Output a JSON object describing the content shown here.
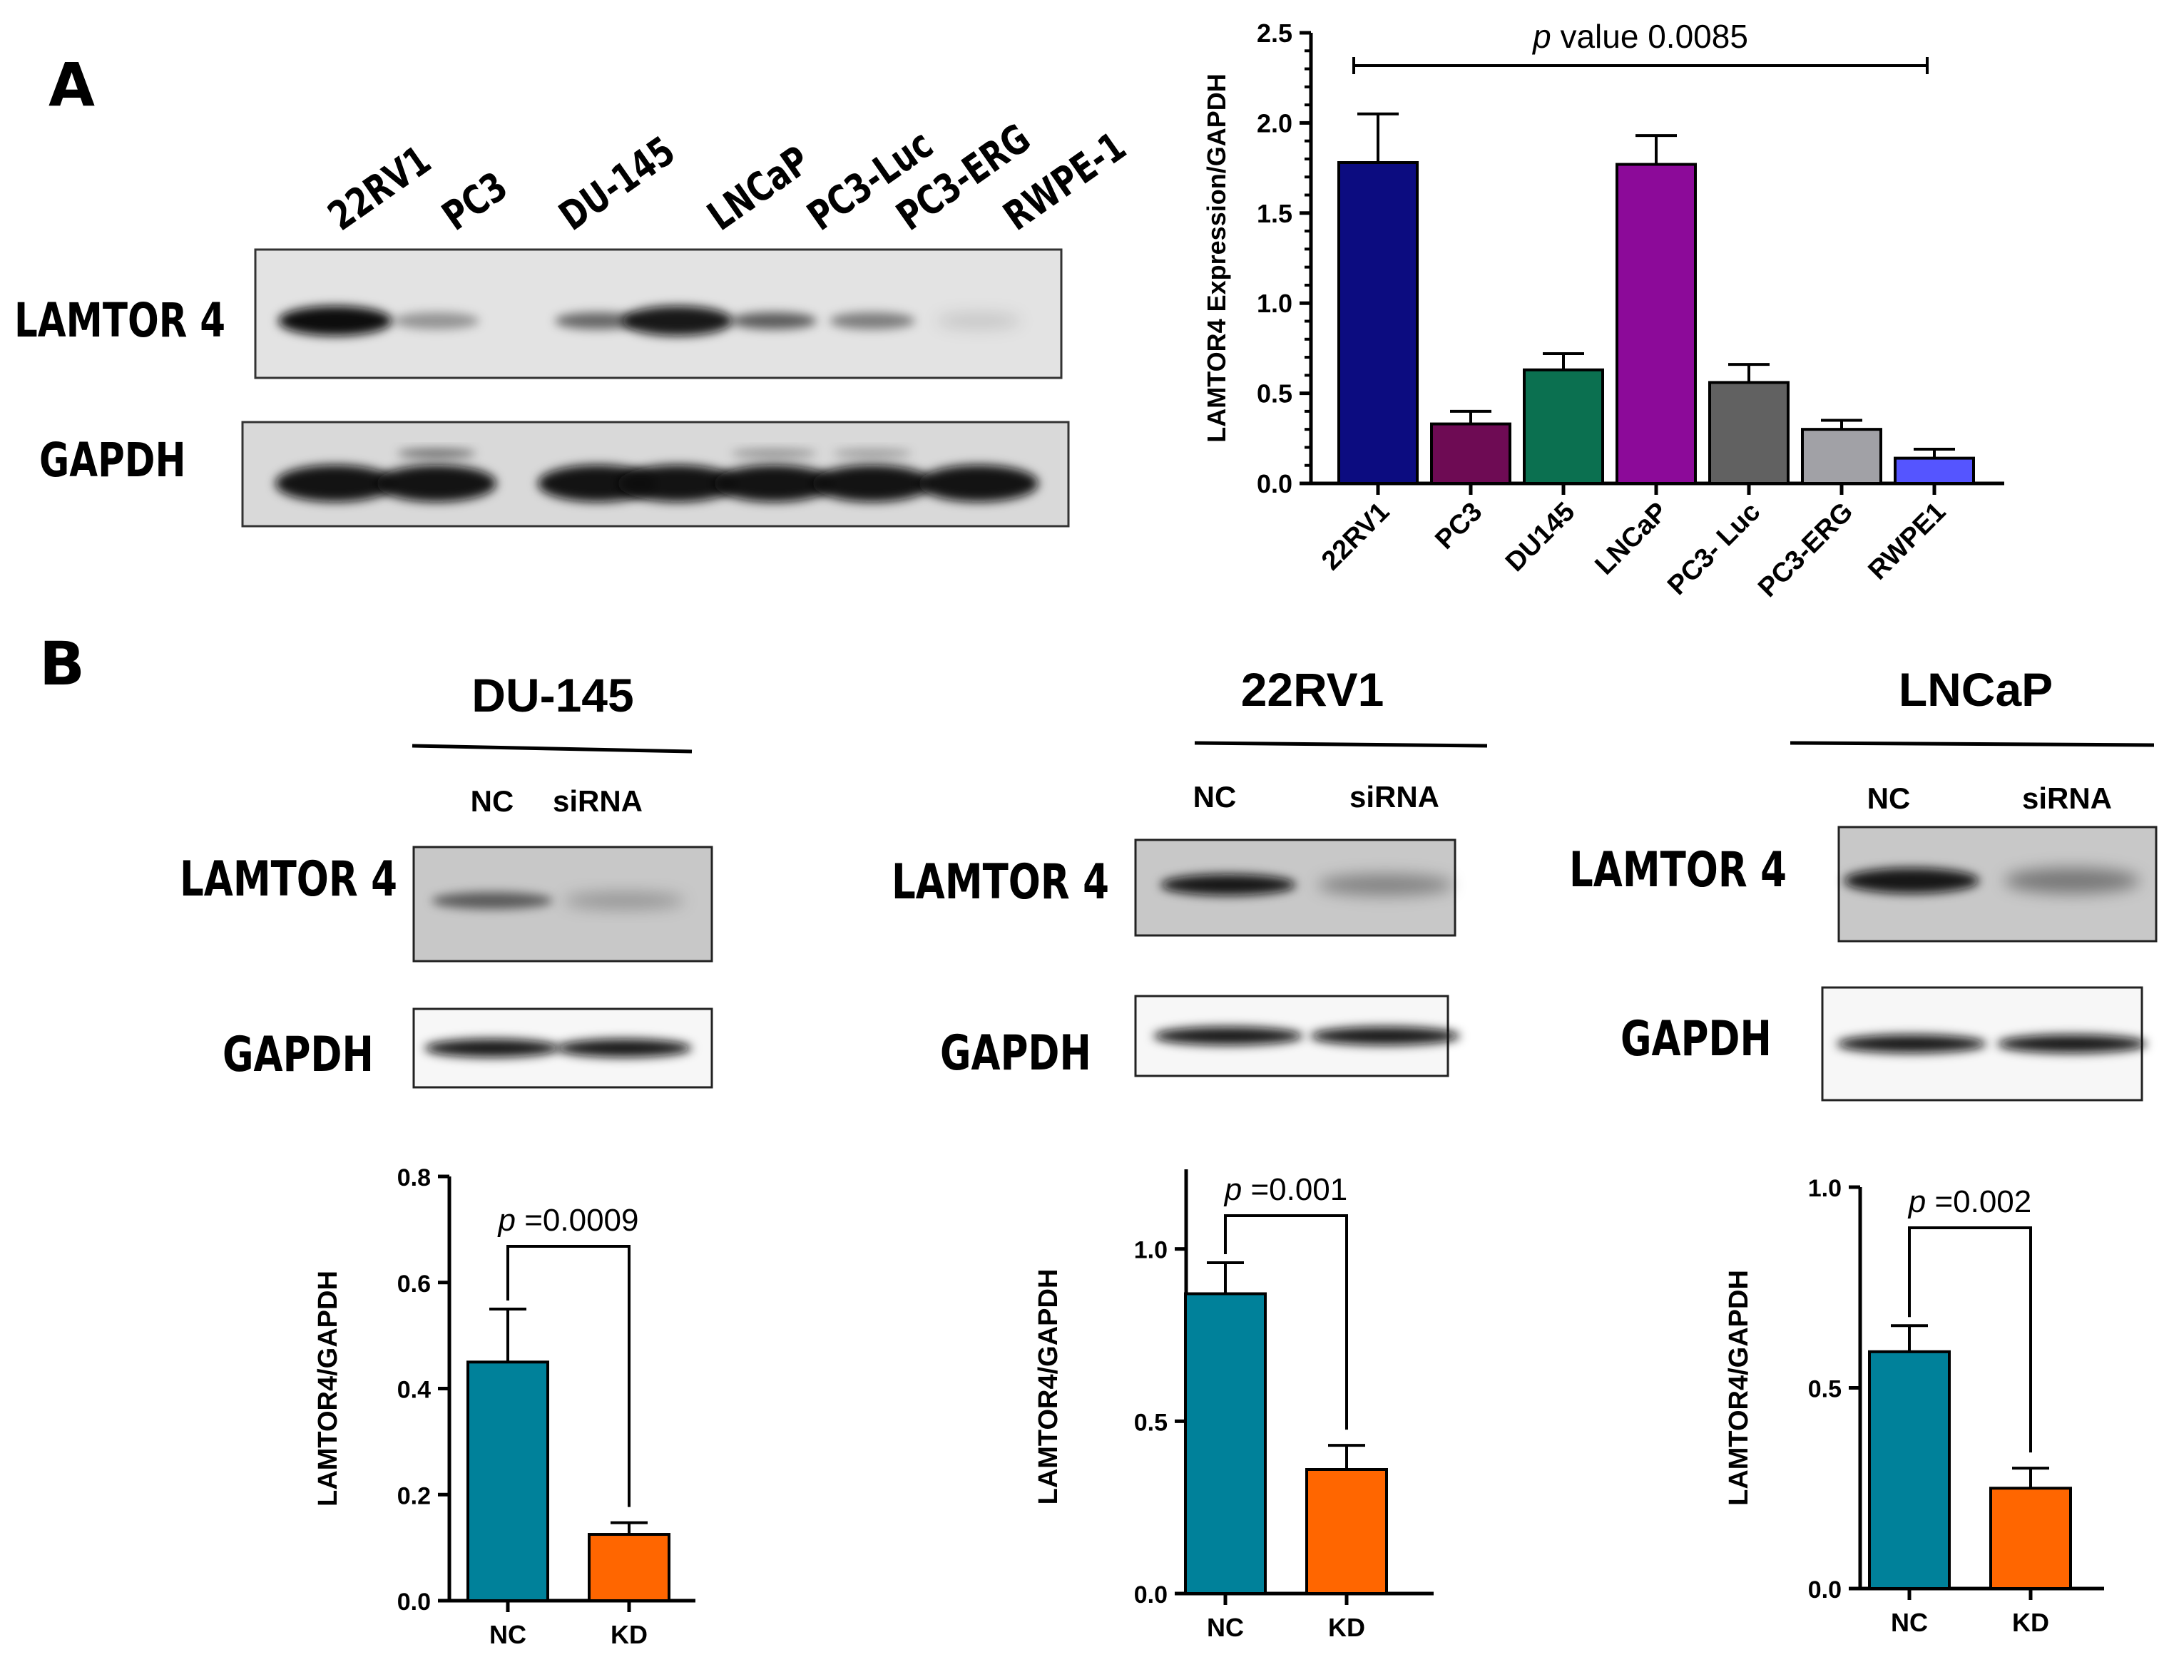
{
  "panel_a": {
    "letter": "A",
    "blot": {
      "lanes": [
        "22RV1",
        "PC3",
        "DU-145",
        "LNCaP",
        "PC3-Luc",
        "PC3-ERG",
        "RWPE-1"
      ],
      "rows": [
        "LAMTOR 4",
        "GAPDH"
      ],
      "lamtor_intensity": [
        1.0,
        0.35,
        0.55,
        0.95,
        0.6,
        0.45,
        0.12
      ],
      "gapdh_intensity": [
        1.0,
        1.0,
        1.0,
        1.0,
        1.0,
        1.0,
        1.0
      ]
    }
  },
  "panel_b": {
    "letter": "B",
    "blots": [
      {
        "title": "DU-145",
        "lanes": [
          "NC",
          "siRNA"
        ],
        "rows": [
          "LAMTOR 4",
          "GAPDH"
        ],
        "lamtor_intensity": [
          0.55,
          0.25
        ]
      },
      {
        "title": "22RV1",
        "lanes": [
          "NC",
          "siRNA"
        ],
        "rows": [
          "LAMTOR 4",
          "GAPDH"
        ],
        "lamtor_intensity": [
          0.95,
          0.35
        ]
      },
      {
        "title": "LNCaP",
        "lanes": [
          "NC",
          "siRNA"
        ],
        "rows": [
          "LAMTOR 4",
          "GAPDH"
        ],
        "lamtor_intensity": [
          0.95,
          0.4
        ]
      }
    ]
  },
  "colors": {
    "bar_a": [
      "#0c0c80",
      "#6e0b54",
      "#0b7050",
      "#8c0a99",
      "#616161",
      "#a1a1a6",
      "#5555ff"
    ],
    "nc": "#00819a",
    "kd": "#ff6600"
  },
  "chart_data": [
    {
      "type": "bar",
      "categories": [
        "22RV1",
        "PC3",
        "DU145",
        "LNCaP",
        "PC3- Luc",
        "PC3-ERG",
        "RWPE1"
      ],
      "values": [
        1.78,
        0.33,
        0.63,
        1.77,
        0.56,
        0.3,
        0.14
      ],
      "errors": [
        0.27,
        0.07,
        0.09,
        0.16,
        0.1,
        0.05,
        0.05
      ],
      "ylabel": "LAMTOR4 Expression/GAPDH",
      "ylim": [
        0,
        2.5
      ],
      "yticks": [
        0.0,
        0.5,
        1.0,
        1.5,
        2.0,
        2.5
      ],
      "ytick_labels": [
        "0.0",
        "0.5",
        "1.0",
        "1.5",
        "2.0",
        "2.5"
      ],
      "annotation": {
        "italic": "p",
        "text": " value 0.0085"
      }
    },
    {
      "type": "bar",
      "categories": [
        "NC",
        "KD"
      ],
      "values": [
        0.45,
        0.125
      ],
      "errors": [
        0.1,
        0.022
      ],
      "ylabel": "LAMTOR4/GAPDH",
      "ylim": [
        0,
        0.8
      ],
      "yticks": [
        0.0,
        0.2,
        0.4,
        0.6,
        0.8
      ],
      "ytick_labels": [
        "0.0",
        "0.2",
        "0.4",
        "0.6",
        "0.8"
      ],
      "annotation": {
        "italic": "p",
        "text": " =0.0009"
      }
    },
    {
      "type": "bar",
      "categories": [
        "NC",
        "KD"
      ],
      "values": [
        0.87,
        0.36
      ],
      "errors": [
        0.09,
        0.07
      ],
      "ylabel": "LAMTOR4/GAPDH",
      "ylim": [
        0,
        1.2
      ],
      "yticks": [
        0.0,
        0.5,
        1.0
      ],
      "ytick_labels": [
        "0.0",
        "0.5",
        "1.0"
      ],
      "annotation": {
        "italic": "p",
        "text": " =0.001"
      }
    },
    {
      "type": "bar",
      "categories": [
        "NC",
        "KD"
      ],
      "values": [
        0.59,
        0.25
      ],
      "errors": [
        0.065,
        0.05
      ],
      "ylabel": "LAMTOR4/GAPDH",
      "ylim": [
        0,
        1.0
      ],
      "yticks": [
        0.0,
        0.5,
        1.0
      ],
      "ytick_labels": [
        "0.0",
        "0.5",
        "1.0"
      ],
      "annotation": {
        "italic": "p",
        "text": " =0.002"
      }
    }
  ]
}
